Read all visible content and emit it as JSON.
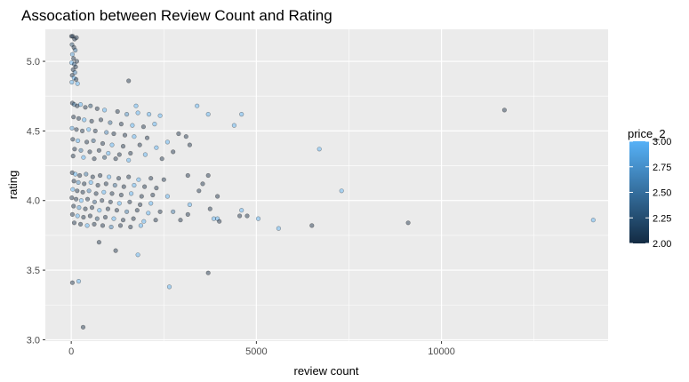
{
  "chart_data": {
    "type": "scatter",
    "title": "Assocation between Review Count and Rating",
    "xlabel": "review count",
    "ylabel": "rating",
    "xlim": [
      -700,
      14500
    ],
    "ylim": [
      2.99,
      5.23
    ],
    "x_ticks": [
      0,
      5000,
      10000
    ],
    "x_tick_labels": [
      "0",
      "5000",
      "10000"
    ],
    "y_ticks": [
      3.0,
      3.5,
      4.0,
      4.5,
      5.0
    ],
    "y_tick_labels": [
      "3.0",
      "3.5",
      "4.0",
      "4.5",
      "5.0"
    ],
    "grid": true,
    "legend": {
      "title": "price_2",
      "placement": "right",
      "range": [
        2.0,
        3.0
      ],
      "ticks": [
        2.0,
        2.25,
        2.5,
        2.75,
        3.0
      ],
      "tick_labels": [
        "2.00",
        "2.25",
        "2.50",
        "2.75",
        "3.00"
      ],
      "color_low": "#132b43",
      "color_high": "#56b1f7"
    },
    "point_alpha": 0.45,
    "point_stroke": "#000000",
    "background_color": "#ebebeb",
    "grid_color": "#ffffff",
    "points": [
      {
        "x": 5,
        "y": 5.18,
        "price": 2.0
      },
      {
        "x": 40,
        "y": 5.18,
        "price": 2.0
      },
      {
        "x": 90,
        "y": 5.16,
        "price": 2.0
      },
      {
        "x": 140,
        "y": 5.17,
        "price": 2.0
      },
      {
        "x": 20,
        "y": 5.12,
        "price": 2.2
      },
      {
        "x": 70,
        "y": 5.1,
        "price": 2.0
      },
      {
        "x": 110,
        "y": 5.08,
        "price": 2.5
      },
      {
        "x": 30,
        "y": 5.05,
        "price": 2.8
      },
      {
        "x": 60,
        "y": 5.02,
        "price": 2.0
      },
      {
        "x": 150,
        "y": 5.0,
        "price": 2.0
      },
      {
        "x": 10,
        "y": 4.99,
        "price": 3.0
      },
      {
        "x": 80,
        "y": 4.98,
        "price": 2.3
      },
      {
        "x": 120,
        "y": 4.96,
        "price": 2.0
      },
      {
        "x": 50,
        "y": 4.94,
        "price": 2.0
      },
      {
        "x": 100,
        "y": 4.92,
        "price": 2.6
      },
      {
        "x": 25,
        "y": 4.9,
        "price": 2.0
      },
      {
        "x": 75,
        "y": 4.88,
        "price": 3.0
      },
      {
        "x": 130,
        "y": 4.87,
        "price": 2.0
      },
      {
        "x": 15,
        "y": 4.85,
        "price": 2.9
      },
      {
        "x": 170,
        "y": 4.84,
        "price": 3.0
      },
      {
        "x": 1550,
        "y": 4.86,
        "price": 2.0
      },
      {
        "x": 3400,
        "y": 4.68,
        "price": 3.0
      },
      {
        "x": 3700,
        "y": 4.62,
        "price": 3.0
      },
      {
        "x": 4600,
        "y": 4.62,
        "price": 3.0
      },
      {
        "x": 4400,
        "y": 4.54,
        "price": 3.0
      },
      {
        "x": 2900,
        "y": 4.48,
        "price": 2.0
      },
      {
        "x": 3100,
        "y": 4.46,
        "price": 2.0
      },
      {
        "x": 3200,
        "y": 4.4,
        "price": 2.0
      },
      {
        "x": 2600,
        "y": 4.42,
        "price": 3.0
      },
      {
        "x": 2750,
        "y": 4.35,
        "price": 2.0
      },
      {
        "x": 6700,
        "y": 4.37,
        "price": 3.0
      },
      {
        "x": 11700,
        "y": 4.65,
        "price": 2.0
      },
      {
        "x": 3150,
        "y": 4.18,
        "price": 2.0
      },
      {
        "x": 3700,
        "y": 4.18,
        "price": 2.0
      },
      {
        "x": 3550,
        "y": 4.12,
        "price": 2.0
      },
      {
        "x": 3950,
        "y": 4.03,
        "price": 2.0
      },
      {
        "x": 7300,
        "y": 4.07,
        "price": 3.0
      },
      {
        "x": 3450,
        "y": 4.07,
        "price": 2.0
      },
      {
        "x": 3200,
        "y": 3.97,
        "price": 3.0
      },
      {
        "x": 3750,
        "y": 3.94,
        "price": 2.0
      },
      {
        "x": 3150,
        "y": 3.9,
        "price": 2.0
      },
      {
        "x": 3850,
        "y": 3.87,
        "price": 3.0
      },
      {
        "x": 3950,
        "y": 3.87,
        "price": 3.0
      },
      {
        "x": 4000,
        "y": 3.85,
        "price": 2.0
      },
      {
        "x": 4600,
        "y": 3.93,
        "price": 3.0
      },
      {
        "x": 4550,
        "y": 3.89,
        "price": 2.0
      },
      {
        "x": 4750,
        "y": 3.89,
        "price": 2.0
      },
      {
        "x": 5050,
        "y": 3.87,
        "price": 3.0
      },
      {
        "x": 5600,
        "y": 3.8,
        "price": 3.0
      },
      {
        "x": 6500,
        "y": 3.82,
        "price": 2.0
      },
      {
        "x": 9100,
        "y": 3.84,
        "price": 2.0
      },
      {
        "x": 14100,
        "y": 3.86,
        "price": 3.0
      },
      {
        "x": 2950,
        "y": 3.86,
        "price": 2.0
      },
      {
        "x": 2750,
        "y": 3.92,
        "price": 2.5
      },
      {
        "x": 750,
        "y": 3.7,
        "price": 2.0
      },
      {
        "x": 1200,
        "y": 3.64,
        "price": 2.0
      },
      {
        "x": 1800,
        "y": 3.61,
        "price": 3.0
      },
      {
        "x": 3700,
        "y": 3.48,
        "price": 2.0
      },
      {
        "x": 200,
        "y": 3.42,
        "price": 3.0
      },
      {
        "x": 30,
        "y": 3.41,
        "price": 2.0
      },
      {
        "x": 2650,
        "y": 3.38,
        "price": 3.0
      },
      {
        "x": 320,
        "y": 3.09,
        "price": 2.0
      },
      {
        "x": 30,
        "y": 4.7,
        "price": 2.0
      },
      {
        "x": 80,
        "y": 4.69,
        "price": 2.5
      },
      {
        "x": 160,
        "y": 4.68,
        "price": 2.0
      },
      {
        "x": 250,
        "y": 4.69,
        "price": 3.0
      },
      {
        "x": 380,
        "y": 4.67,
        "price": 2.0
      },
      {
        "x": 520,
        "y": 4.68,
        "price": 2.2
      },
      {
        "x": 700,
        "y": 4.66,
        "price": 2.0
      },
      {
        "x": 900,
        "y": 4.65,
        "price": 3.0
      },
      {
        "x": 1250,
        "y": 4.64,
        "price": 2.0
      },
      {
        "x": 1500,
        "y": 4.62,
        "price": 2.7
      },
      {
        "x": 1800,
        "y": 4.63,
        "price": 3.0
      },
      {
        "x": 2100,
        "y": 4.62,
        "price": 3.0
      },
      {
        "x": 2400,
        "y": 4.61,
        "price": 3.0
      },
      {
        "x": 1750,
        "y": 4.68,
        "price": 3.0
      },
      {
        "x": 60,
        "y": 4.6,
        "price": 2.0
      },
      {
        "x": 200,
        "y": 4.59,
        "price": 2.0
      },
      {
        "x": 350,
        "y": 4.58,
        "price": 3.0
      },
      {
        "x": 550,
        "y": 4.57,
        "price": 2.0
      },
      {
        "x": 800,
        "y": 4.58,
        "price": 2.0
      },
      {
        "x": 1050,
        "y": 4.56,
        "price": 2.4
      },
      {
        "x": 1350,
        "y": 4.55,
        "price": 2.0
      },
      {
        "x": 1650,
        "y": 4.54,
        "price": 3.0
      },
      {
        "x": 1950,
        "y": 4.53,
        "price": 2.0
      },
      {
        "x": 2250,
        "y": 4.55,
        "price": 3.0
      },
      {
        "x": 20,
        "y": 4.52,
        "price": 2.8
      },
      {
        "x": 140,
        "y": 4.51,
        "price": 2.0
      },
      {
        "x": 300,
        "y": 4.5,
        "price": 2.0
      },
      {
        "x": 470,
        "y": 4.51,
        "price": 3.0
      },
      {
        "x": 650,
        "y": 4.5,
        "price": 2.0
      },
      {
        "x": 950,
        "y": 4.49,
        "price": 2.6
      },
      {
        "x": 1150,
        "y": 4.48,
        "price": 2.0
      },
      {
        "x": 1450,
        "y": 4.47,
        "price": 2.0
      },
      {
        "x": 1700,
        "y": 4.46,
        "price": 3.0
      },
      {
        "x": 2050,
        "y": 4.45,
        "price": 2.0
      },
      {
        "x": 40,
        "y": 4.44,
        "price": 2.0
      },
      {
        "x": 180,
        "y": 4.43,
        "price": 3.0
      },
      {
        "x": 420,
        "y": 4.42,
        "price": 2.0
      },
      {
        "x": 600,
        "y": 4.43,
        "price": 2.3
      },
      {
        "x": 850,
        "y": 4.41,
        "price": 2.0
      },
      {
        "x": 1100,
        "y": 4.4,
        "price": 3.0
      },
      {
        "x": 1400,
        "y": 4.39,
        "price": 2.0
      },
      {
        "x": 1850,
        "y": 4.4,
        "price": 2.0
      },
      {
        "x": 2300,
        "y": 4.38,
        "price": 3.0
      },
      {
        "x": 90,
        "y": 4.37,
        "price": 2.0
      },
      {
        "x": 260,
        "y": 4.36,
        "price": 2.5
      },
      {
        "x": 500,
        "y": 4.35,
        "price": 2.0
      },
      {
        "x": 750,
        "y": 4.36,
        "price": 2.0
      },
      {
        "x": 1000,
        "y": 4.34,
        "price": 3.0
      },
      {
        "x": 1300,
        "y": 4.33,
        "price": 2.0
      },
      {
        "x": 1600,
        "y": 4.34,
        "price": 2.0
      },
      {
        "x": 2000,
        "y": 4.33,
        "price": 3.0
      },
      {
        "x": 50,
        "y": 4.32,
        "price": 2.0
      },
      {
        "x": 330,
        "y": 4.31,
        "price": 3.0
      },
      {
        "x": 620,
        "y": 4.3,
        "price": 2.0
      },
      {
        "x": 900,
        "y": 4.31,
        "price": 2.2
      },
      {
        "x": 1200,
        "y": 4.3,
        "price": 2.0
      },
      {
        "x": 1550,
        "y": 4.29,
        "price": 3.0
      },
      {
        "x": 2450,
        "y": 4.3,
        "price": 2.0
      },
      {
        "x": 25,
        "y": 4.2,
        "price": 2.0
      },
      {
        "x": 110,
        "y": 4.19,
        "price": 3.0
      },
      {
        "x": 230,
        "y": 4.18,
        "price": 2.0
      },
      {
        "x": 400,
        "y": 4.19,
        "price": 2.5
      },
      {
        "x": 580,
        "y": 4.17,
        "price": 2.0
      },
      {
        "x": 780,
        "y": 4.18,
        "price": 2.0
      },
      {
        "x": 1020,
        "y": 4.17,
        "price": 3.0
      },
      {
        "x": 1280,
        "y": 4.16,
        "price": 2.0
      },
      {
        "x": 1550,
        "y": 4.17,
        "price": 2.0
      },
      {
        "x": 1820,
        "y": 4.15,
        "price": 3.0
      },
      {
        "x": 2150,
        "y": 4.16,
        "price": 2.0
      },
      {
        "x": 2500,
        "y": 4.15,
        "price": 2.0
      },
      {
        "x": 70,
        "y": 4.14,
        "price": 2.0
      },
      {
        "x": 190,
        "y": 4.13,
        "price": 2.7
      },
      {
        "x": 350,
        "y": 4.12,
        "price": 2.0
      },
      {
        "x": 530,
        "y": 4.13,
        "price": 3.0
      },
      {
        "x": 720,
        "y": 4.11,
        "price": 2.0
      },
      {
        "x": 940,
        "y": 4.12,
        "price": 2.0
      },
      {
        "x": 1180,
        "y": 4.11,
        "price": 2.4
      },
      {
        "x": 1420,
        "y": 4.1,
        "price": 2.0
      },
      {
        "x": 1700,
        "y": 4.11,
        "price": 3.0
      },
      {
        "x": 1980,
        "y": 4.1,
        "price": 2.0
      },
      {
        "x": 2300,
        "y": 4.09,
        "price": 2.0
      },
      {
        "x": 40,
        "y": 4.08,
        "price": 3.0
      },
      {
        "x": 160,
        "y": 4.07,
        "price": 2.0
      },
      {
        "x": 310,
        "y": 4.06,
        "price": 2.0
      },
      {
        "x": 480,
        "y": 4.07,
        "price": 2.6
      },
      {
        "x": 670,
        "y": 4.05,
        "price": 2.0
      },
      {
        "x": 880,
        "y": 4.06,
        "price": 3.0
      },
      {
        "x": 1100,
        "y": 4.05,
        "price": 2.0
      },
      {
        "x": 1350,
        "y": 4.04,
        "price": 2.0
      },
      {
        "x": 1620,
        "y": 4.05,
        "price": 3.0
      },
      {
        "x": 1900,
        "y": 4.03,
        "price": 2.0
      },
      {
        "x": 2200,
        "y": 4.04,
        "price": 2.0
      },
      {
        "x": 2600,
        "y": 4.03,
        "price": 3.0
      },
      {
        "x": 15,
        "y": 4.02,
        "price": 2.0
      },
      {
        "x": 130,
        "y": 4.01,
        "price": 2.0
      },
      {
        "x": 270,
        "y": 4.0,
        "price": 3.0
      },
      {
        "x": 440,
        "y": 4.01,
        "price": 2.0
      },
      {
        "x": 630,
        "y": 3.99,
        "price": 2.3
      },
      {
        "x": 830,
        "y": 4.0,
        "price": 2.0
      },
      {
        "x": 1060,
        "y": 3.99,
        "price": 2.0
      },
      {
        "x": 1300,
        "y": 3.98,
        "price": 3.0
      },
      {
        "x": 1580,
        "y": 3.99,
        "price": 2.0
      },
      {
        "x": 1860,
        "y": 3.97,
        "price": 2.0
      },
      {
        "x": 2150,
        "y": 3.98,
        "price": 3.0
      },
      {
        "x": 60,
        "y": 3.96,
        "price": 2.0
      },
      {
        "x": 210,
        "y": 3.95,
        "price": 2.8
      },
      {
        "x": 380,
        "y": 3.94,
        "price": 2.0
      },
      {
        "x": 560,
        "y": 3.95,
        "price": 2.0
      },
      {
        "x": 760,
        "y": 3.93,
        "price": 3.0
      },
      {
        "x": 990,
        "y": 3.94,
        "price": 2.0
      },
      {
        "x": 1230,
        "y": 3.93,
        "price": 2.0
      },
      {
        "x": 1500,
        "y": 3.92,
        "price": 2.5
      },
      {
        "x": 1780,
        "y": 3.93,
        "price": 2.0
      },
      {
        "x": 2080,
        "y": 3.91,
        "price": 3.0
      },
      {
        "x": 2400,
        "y": 3.92,
        "price": 2.0
      },
      {
        "x": 30,
        "y": 3.9,
        "price": 2.0
      },
      {
        "x": 170,
        "y": 3.89,
        "price": 3.0
      },
      {
        "x": 330,
        "y": 3.88,
        "price": 2.0
      },
      {
        "x": 510,
        "y": 3.89,
        "price": 2.0
      },
      {
        "x": 700,
        "y": 3.87,
        "price": 2.2
      },
      {
        "x": 920,
        "y": 3.88,
        "price": 2.0
      },
      {
        "x": 1150,
        "y": 3.87,
        "price": 3.0
      },
      {
        "x": 1400,
        "y": 3.86,
        "price": 2.0
      },
      {
        "x": 1680,
        "y": 3.87,
        "price": 2.0
      },
      {
        "x": 1960,
        "y": 3.85,
        "price": 3.0
      },
      {
        "x": 2280,
        "y": 3.86,
        "price": 2.0
      },
      {
        "x": 80,
        "y": 3.84,
        "price": 2.0
      },
      {
        "x": 250,
        "y": 3.83,
        "price": 2.0
      },
      {
        "x": 430,
        "y": 3.82,
        "price": 3.0
      },
      {
        "x": 620,
        "y": 3.83,
        "price": 2.0
      },
      {
        "x": 850,
        "y": 3.82,
        "price": 2.0
      },
      {
        "x": 1080,
        "y": 3.81,
        "price": 2.6
      },
      {
        "x": 1330,
        "y": 3.82,
        "price": 2.0
      },
      {
        "x": 1600,
        "y": 3.81,
        "price": 2.0
      },
      {
        "x": 1880,
        "y": 3.82,
        "price": 3.0
      }
    ]
  }
}
